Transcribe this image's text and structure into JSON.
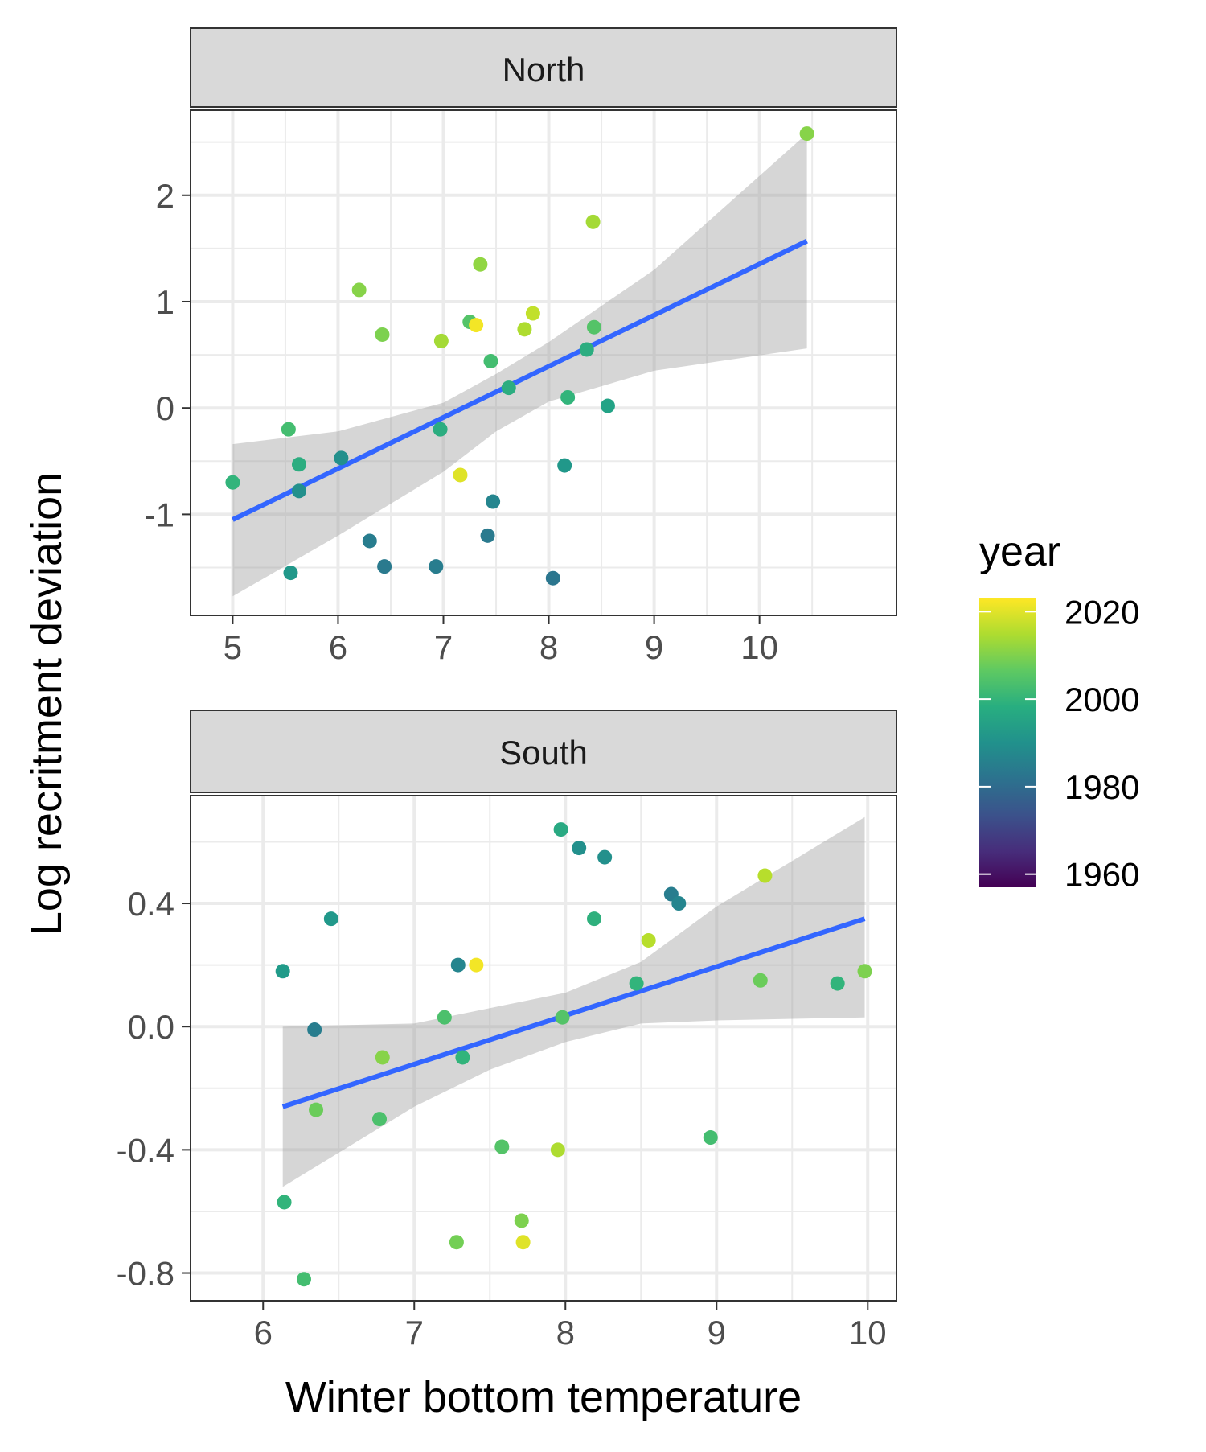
{
  "chart_data": {
    "type": "scatter",
    "xlabel": "Winter bottom temperature",
    "ylabel": "Log recritment deviation",
    "legend": {
      "title": "year",
      "position": "right",
      "range": [
        1957,
        2023
      ],
      "breaks": [
        1960,
        1980,
        2000,
        2020
      ],
      "labels": [
        "1960",
        "1980",
        "2000",
        "2020"
      ]
    },
    "colors": {
      "smooth_line": "#3366ff",
      "ribbon": "#999999",
      "grid": "#ebebeb",
      "strip_fill": "#d9d9d9",
      "panel_border": "#333333"
    },
    "panels": [
      {
        "strip": "North",
        "xlim": [
          4.6,
          11.3
        ],
        "ylim": [
          -1.95,
          2.8
        ],
        "xticks": [
          5,
          6,
          7,
          8,
          9,
          10
        ],
        "yticks": [
          -1,
          0,
          1,
          2
        ],
        "ytick_labels": [
          "-1",
          "0",
          "1",
          "2"
        ],
        "trend": {
          "x0": 5.0,
          "x1": 10.45,
          "y0": -1.05,
          "y1": 1.57
        },
        "band": [
          {
            "x": 5.0,
            "lo": -1.77,
            "hi": -0.34
          },
          {
            "x": 6.0,
            "lo": -1.2,
            "hi": -0.22
          },
          {
            "x": 7.0,
            "lo": -0.6,
            "hi": 0.05
          },
          {
            "x": 7.5,
            "lo": -0.22,
            "hi": 0.32
          },
          {
            "x": 8.0,
            "lo": 0.06,
            "hi": 0.62
          },
          {
            "x": 9.0,
            "lo": 0.35,
            "hi": 1.3
          },
          {
            "x": 10.45,
            "lo": 0.56,
            "hi": 2.58
          }
        ],
        "points": [
          {
            "x": 5.0,
            "y": -0.7,
            "year": 2000
          },
          {
            "x": 5.53,
            "y": -0.2,
            "year": 2003
          },
          {
            "x": 5.55,
            "y": -1.55,
            "year": 1992
          },
          {
            "x": 5.63,
            "y": -0.53,
            "year": 1998
          },
          {
            "x": 5.63,
            "y": -0.78,
            "year": 1990
          },
          {
            "x": 6.03,
            "y": -0.47,
            "year": 1990
          },
          {
            "x": 6.2,
            "y": 1.11,
            "year": 2011
          },
          {
            "x": 6.3,
            "y": -1.25,
            "year": 1985
          },
          {
            "x": 6.42,
            "y": 0.69,
            "year": 2010
          },
          {
            "x": 6.44,
            "y": -1.49,
            "year": 1984
          },
          {
            "x": 6.93,
            "y": -1.49,
            "year": 1985
          },
          {
            "x": 6.97,
            "y": -0.2,
            "year": 1998
          },
          {
            "x": 6.98,
            "y": 0.63,
            "year": 2014
          },
          {
            "x": 7.16,
            "y": -0.63,
            "year": 2020
          },
          {
            "x": 7.25,
            "y": 0.81,
            "year": 2005
          },
          {
            "x": 7.31,
            "y": 0.78,
            "year": 2022
          },
          {
            "x": 7.35,
            "y": 1.35,
            "year": 2012
          },
          {
            "x": 7.42,
            "y": -1.2,
            "year": 1984
          },
          {
            "x": 7.45,
            "y": 0.44,
            "year": 2003
          },
          {
            "x": 7.47,
            "y": -0.88,
            "year": 1987
          },
          {
            "x": 7.62,
            "y": 0.19,
            "year": 1998
          },
          {
            "x": 7.77,
            "y": 0.74,
            "year": 2015
          },
          {
            "x": 7.85,
            "y": 0.89,
            "year": 2017
          },
          {
            "x": 8.04,
            "y": -1.6,
            "year": 1983
          },
          {
            "x": 8.15,
            "y": -0.54,
            "year": 1992
          },
          {
            "x": 8.18,
            "y": 0.1,
            "year": 2000
          },
          {
            "x": 8.36,
            "y": 0.55,
            "year": 1998
          },
          {
            "x": 8.42,
            "y": 1.75,
            "year": 2014
          },
          {
            "x": 8.43,
            "y": 0.76,
            "year": 2005
          },
          {
            "x": 8.56,
            "y": 0.02,
            "year": 1995
          },
          {
            "x": 10.45,
            "y": 2.58,
            "year": 2011
          }
        ]
      },
      {
        "strip": "South",
        "xlim": [
          5.52,
          10.19
        ],
        "ylim": [
          -0.89,
          0.75
        ],
        "xticks": [
          6,
          7,
          8,
          9,
          10
        ],
        "yticks": [
          -0.8,
          -0.4,
          0.0,
          0.4
        ],
        "ytick_labels": [
          "-0.8",
          "-0.4",
          "0.0",
          "0.4"
        ],
        "trend": {
          "x0": 6.13,
          "x1": 9.98,
          "y0": -0.26,
          "y1": 0.35
        },
        "band": [
          {
            "x": 6.13,
            "lo": -0.52,
            "hi": 0.0
          },
          {
            "x": 7.0,
            "lo": -0.26,
            "hi": 0.01
          },
          {
            "x": 7.5,
            "lo": -0.14,
            "hi": 0.06
          },
          {
            "x": 8.0,
            "lo": -0.05,
            "hi": 0.11
          },
          {
            "x": 8.5,
            "lo": 0.01,
            "hi": 0.21
          },
          {
            "x": 9.0,
            "lo": 0.02,
            "hi": 0.39
          },
          {
            "x": 9.98,
            "lo": 0.03,
            "hi": 0.68
          }
        ],
        "points": [
          {
            "x": 6.13,
            "y": 0.18,
            "year": 1993
          },
          {
            "x": 6.14,
            "y": -0.57,
            "year": 2000
          },
          {
            "x": 6.27,
            "y": -0.82,
            "year": 2003
          },
          {
            "x": 6.34,
            "y": -0.01,
            "year": 1985
          },
          {
            "x": 6.35,
            "y": -0.27,
            "year": 2008
          },
          {
            "x": 6.45,
            "y": 0.35,
            "year": 1992
          },
          {
            "x": 6.77,
            "y": -0.3,
            "year": 2004
          },
          {
            "x": 6.79,
            "y": -0.1,
            "year": 2011
          },
          {
            "x": 7.2,
            "y": 0.03,
            "year": 2004
          },
          {
            "x": 7.28,
            "y": -0.7,
            "year": 2009
          },
          {
            "x": 7.29,
            "y": 0.2,
            "year": 1987
          },
          {
            "x": 7.32,
            "y": -0.1,
            "year": 2000
          },
          {
            "x": 7.41,
            "y": 0.2,
            "year": 2022
          },
          {
            "x": 7.58,
            "y": -0.39,
            "year": 2005
          },
          {
            "x": 7.71,
            "y": -0.63,
            "year": 2010
          },
          {
            "x": 7.72,
            "y": -0.7,
            "year": 2020
          },
          {
            "x": 7.95,
            "y": -0.4,
            "year": 2015
          },
          {
            "x": 7.97,
            "y": 0.64,
            "year": 1997
          },
          {
            "x": 7.98,
            "y": 0.03,
            "year": 2005
          },
          {
            "x": 8.09,
            "y": 0.58,
            "year": 1990
          },
          {
            "x": 8.19,
            "y": 0.35,
            "year": 1999
          },
          {
            "x": 8.26,
            "y": 0.55,
            "year": 1990
          },
          {
            "x": 8.47,
            "y": 0.14,
            "year": 2000
          },
          {
            "x": 8.55,
            "y": 0.28,
            "year": 2016
          },
          {
            "x": 8.7,
            "y": 0.43,
            "year": 1985
          },
          {
            "x": 8.75,
            "y": 0.4,
            "year": 1987
          },
          {
            "x": 8.96,
            "y": -0.36,
            "year": 2003
          },
          {
            "x": 9.29,
            "y": 0.15,
            "year": 2008
          },
          {
            "x": 9.32,
            "y": 0.49,
            "year": 2016
          },
          {
            "x": 9.8,
            "y": 0.14,
            "year": 2000
          },
          {
            "x": 9.98,
            "y": 0.18,
            "year": 2010
          }
        ]
      }
    ]
  }
}
